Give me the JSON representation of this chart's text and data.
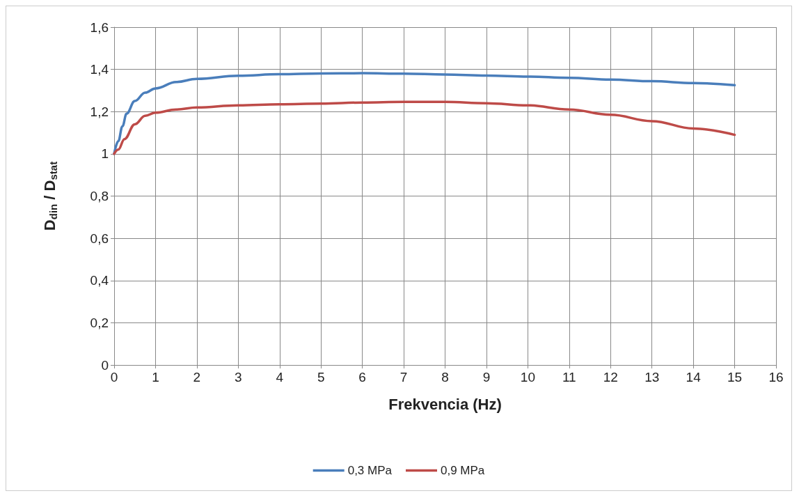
{
  "chart_data": {
    "type": "line",
    "xlabel": "Frekvencia (Hz)",
    "ylabel": "D$_{din}$ / D$_{stat}$",
    "xlim": [
      0,
      16
    ],
    "xticks": [
      0,
      1,
      2,
      3,
      4,
      5,
      6,
      7,
      8,
      9,
      10,
      11,
      12,
      13,
      14,
      15,
      16
    ],
    "ylim": [
      0,
      1.6
    ],
    "yticks": [
      0,
      {
        "value": 0.2,
        "label": "0,2"
      },
      {
        "value": 0.4,
        "label": "0,4"
      },
      {
        "value": 0.6,
        "label": "0,6"
      },
      {
        "value": 0.8,
        "label": "0,8"
      },
      1,
      {
        "value": 1.2,
        "label": "1,2"
      },
      {
        "value": 1.4,
        "label": "1,4"
      },
      {
        "value": 1.6,
        "label": "1,6"
      }
    ],
    "grid": true,
    "legend": "bottom",
    "marker": "none",
    "line_style": "solid",
    "series": [
      {
        "name": "0,3 MPa",
        "color": "#4a7ebb",
        "x": [
          0,
          0.1,
          0.2,
          0.3,
          0.5,
          0.75,
          1,
          1.5,
          2,
          3,
          4,
          5,
          6,
          7,
          8,
          9,
          10,
          11,
          12,
          13,
          14,
          15
        ],
        "values": [
          1.0,
          1.06,
          1.13,
          1.19,
          1.25,
          1.29,
          1.31,
          1.34,
          1.355,
          1.37,
          1.377,
          1.381,
          1.382,
          1.38,
          1.376,
          1.371,
          1.366,
          1.36,
          1.352,
          1.344,
          1.335,
          1.325
        ]
      },
      {
        "name": "0,9 MPa",
        "color": "#be4b48",
        "x": [
          0,
          0.1,
          0.25,
          0.5,
          0.75,
          1,
          1.5,
          2,
          3,
          4,
          5,
          6,
          7,
          8,
          9,
          10,
          11,
          12,
          13,
          14,
          15
        ],
        "values": [
          1.0,
          1.02,
          1.07,
          1.14,
          1.18,
          1.195,
          1.21,
          1.22,
          1.23,
          1.235,
          1.238,
          1.243,
          1.246,
          1.246,
          1.24,
          1.23,
          1.21,
          1.185,
          1.155,
          1.12,
          1.09
        ]
      }
    ]
  }
}
